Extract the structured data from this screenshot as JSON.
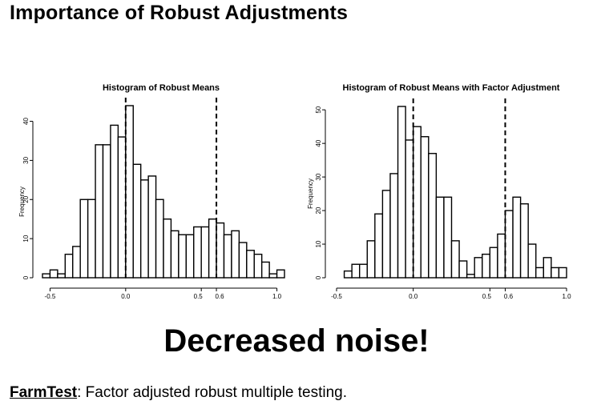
{
  "slide": {
    "title": "Importance of Robust Adjustments",
    "headline": "Decreased noise!",
    "footer": {
      "package": "FarmTest",
      "description": ": Factor adjusted robust multiple testing."
    }
  },
  "chart_data": [
    {
      "type": "bar",
      "title": "Histogram of Robust Means",
      "xlabel": "",
      "ylabel": "Frequency",
      "bin_width": 0.05,
      "bin_start": -0.55,
      "counts": [
        1,
        2,
        1,
        6,
        8,
        20,
        20,
        34,
        34,
        39,
        36,
        44,
        29,
        25,
        26,
        20,
        15,
        12,
        11,
        11,
        13,
        13,
        15,
        14,
        11,
        12,
        9,
        7,
        6,
        4,
        1,
        2
      ],
      "xlim": [
        -0.55,
        1.05
      ],
      "ylim": [
        0,
        44
      ],
      "x_ticks": [
        "-0.5",
        "0.0",
        "0.5",
        "0.6",
        "1.0"
      ],
      "x_tick_values": [
        -0.5,
        0.0,
        0.5,
        0.6,
        1.0
      ],
      "y_ticks": [
        0,
        10,
        20,
        30,
        40
      ],
      "vlines": [
        0.0,
        0.6
      ],
      "grid": false
    },
    {
      "type": "bar",
      "title": "Histogram of Robust Means with Factor Adjustment",
      "xlabel": "",
      "ylabel": "Frequency",
      "bin_width": 0.05,
      "bin_start": -0.45,
      "counts": [
        2,
        4,
        4,
        11,
        19,
        26,
        31,
        51,
        41,
        45,
        42,
        37,
        24,
        24,
        11,
        5,
        1,
        6,
        7,
        9,
        13,
        20,
        24,
        22,
        10,
        3,
        6,
        3,
        3
      ],
      "xlim": [
        -0.5,
        1.0
      ],
      "ylim": [
        0,
        51
      ],
      "x_ticks": [
        "-0.5",
        "0.0",
        "0.5",
        "0.6",
        "1.0"
      ],
      "x_tick_values": [
        -0.5,
        0.0,
        0.5,
        0.6,
        1.0
      ],
      "y_ticks": [
        0,
        10,
        20,
        30,
        40,
        50
      ],
      "vlines": [
        0.0,
        0.6
      ],
      "grid": false
    }
  ]
}
